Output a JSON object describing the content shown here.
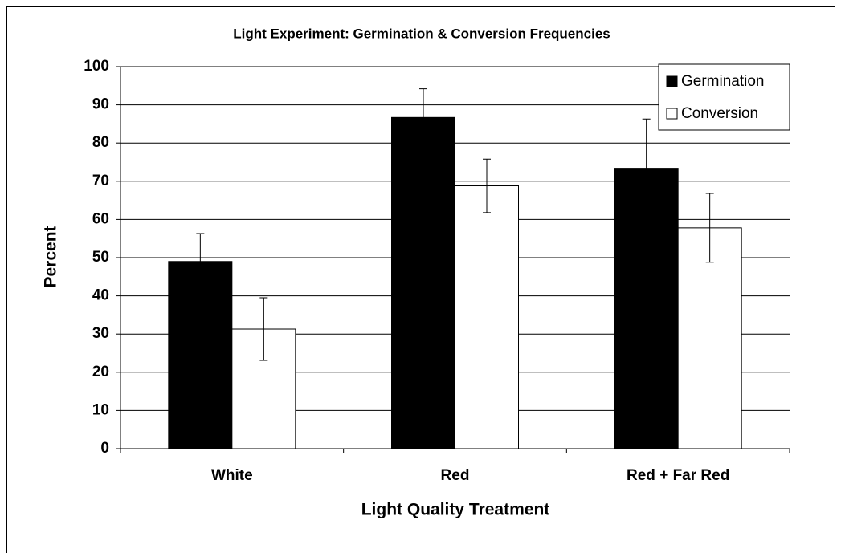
{
  "chart_data": {
    "type": "bar",
    "title": "Light Experiment:  Germination & Conversion Frequencies",
    "x_label": "Light Quality Treatment",
    "y_label": "Percent",
    "categories": [
      "White",
      "Red",
      "Red + Far Red"
    ],
    "series": [
      {
        "name": "Germination",
        "color": "#000000",
        "values": [
          49,
          86.7,
          73.4
        ],
        "errors": [
          7.3,
          7.5,
          12.9
        ]
      },
      {
        "name": "Conversion",
        "color": "#ffffff",
        "values": [
          31.3,
          68.8,
          57.8
        ],
        "errors": [
          8.2,
          7,
          9
        ]
      }
    ],
    "ylim": [
      0,
      100
    ],
    "yticks": [
      0,
      10,
      20,
      30,
      40,
      50,
      60,
      70,
      80,
      90,
      100
    ],
    "grid": true,
    "legend": "upper right"
  }
}
